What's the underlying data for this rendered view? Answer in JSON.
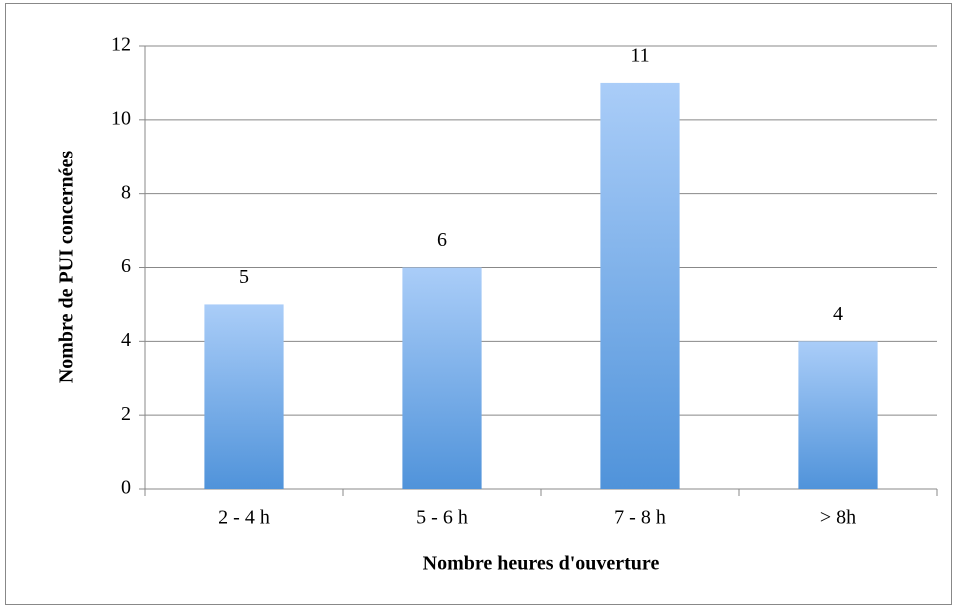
{
  "chart_data": {
    "type": "bar",
    "categories": [
      "2 - 4 h",
      "5 - 6 h",
      "7 - 8 h",
      "> 8h"
    ],
    "values": [
      5,
      6,
      11,
      4
    ],
    "color": "#5b9ee0",
    "xlabel": "Nombre heures d'ouverture",
    "ylabel": "Nombre de PUI concernées",
    "ylim": [
      0,
      12
    ],
    "yticks": [
      0,
      2,
      4,
      6,
      8,
      10,
      12
    ],
    "grid": true
  }
}
